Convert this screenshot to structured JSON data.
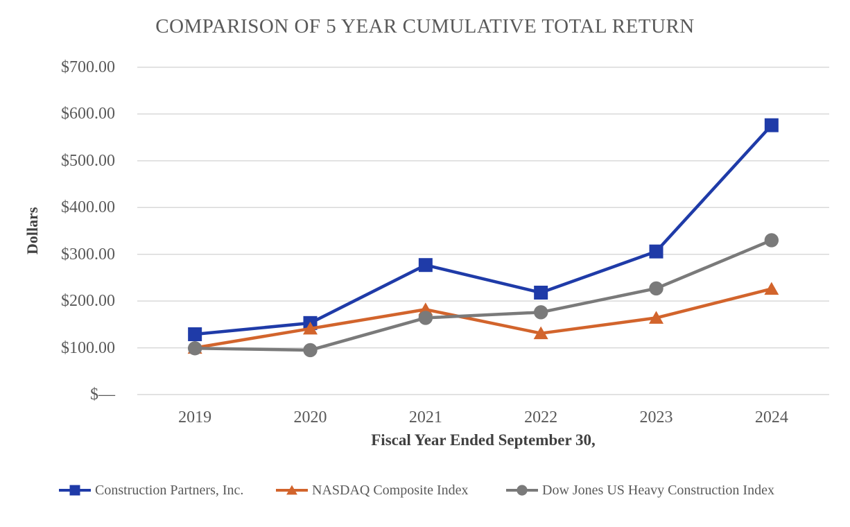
{
  "chart_data": {
    "type": "line",
    "title": "COMPARISON OF 5 YEAR CUMULATIVE TOTAL RETURN",
    "xlabel": "Fiscal Year Ended September 30,",
    "ylabel": "Dollars",
    "categories": [
      "2019",
      "2020",
      "2021",
      "2022",
      "2023",
      "2024"
    ],
    "ylim": [
      0,
      700
    ],
    "grid": "horizontal",
    "legend_position": "bottom",
    "y_ticks": [
      {
        "value": 700,
        "label": "$700.00"
      },
      {
        "value": 600,
        "label": "$600.00"
      },
      {
        "value": 500,
        "label": "$500.00"
      },
      {
        "value": 400,
        "label": "$400.00"
      },
      {
        "value": 300,
        "label": "$300.00"
      },
      {
        "value": 200,
        "label": "$200.00"
      },
      {
        "value": 100,
        "label": "$100.00"
      },
      {
        "value": 0,
        "label": "$—"
      }
    ],
    "series": [
      {
        "name": "Construction Partners, Inc.",
        "marker": "square",
        "color": "#1F3BA8",
        "values": [
          129,
          153,
          277,
          218,
          306,
          576
        ]
      },
      {
        "name": "NASDAQ Composite Index",
        "marker": "triangle",
        "color": "#D2642C",
        "values": [
          100,
          141,
          182,
          131,
          164,
          226
        ]
      },
      {
        "name": "Dow Jones US Heavy Construction Index",
        "marker": "circle",
        "color": "#7A7A7A",
        "values": [
          99,
          95,
          164,
          176,
          227,
          330
        ]
      }
    ]
  },
  "colors": {
    "gridline": "#D9D9D9",
    "tick_text": "#595959",
    "axis_title_text": "#404040"
  }
}
